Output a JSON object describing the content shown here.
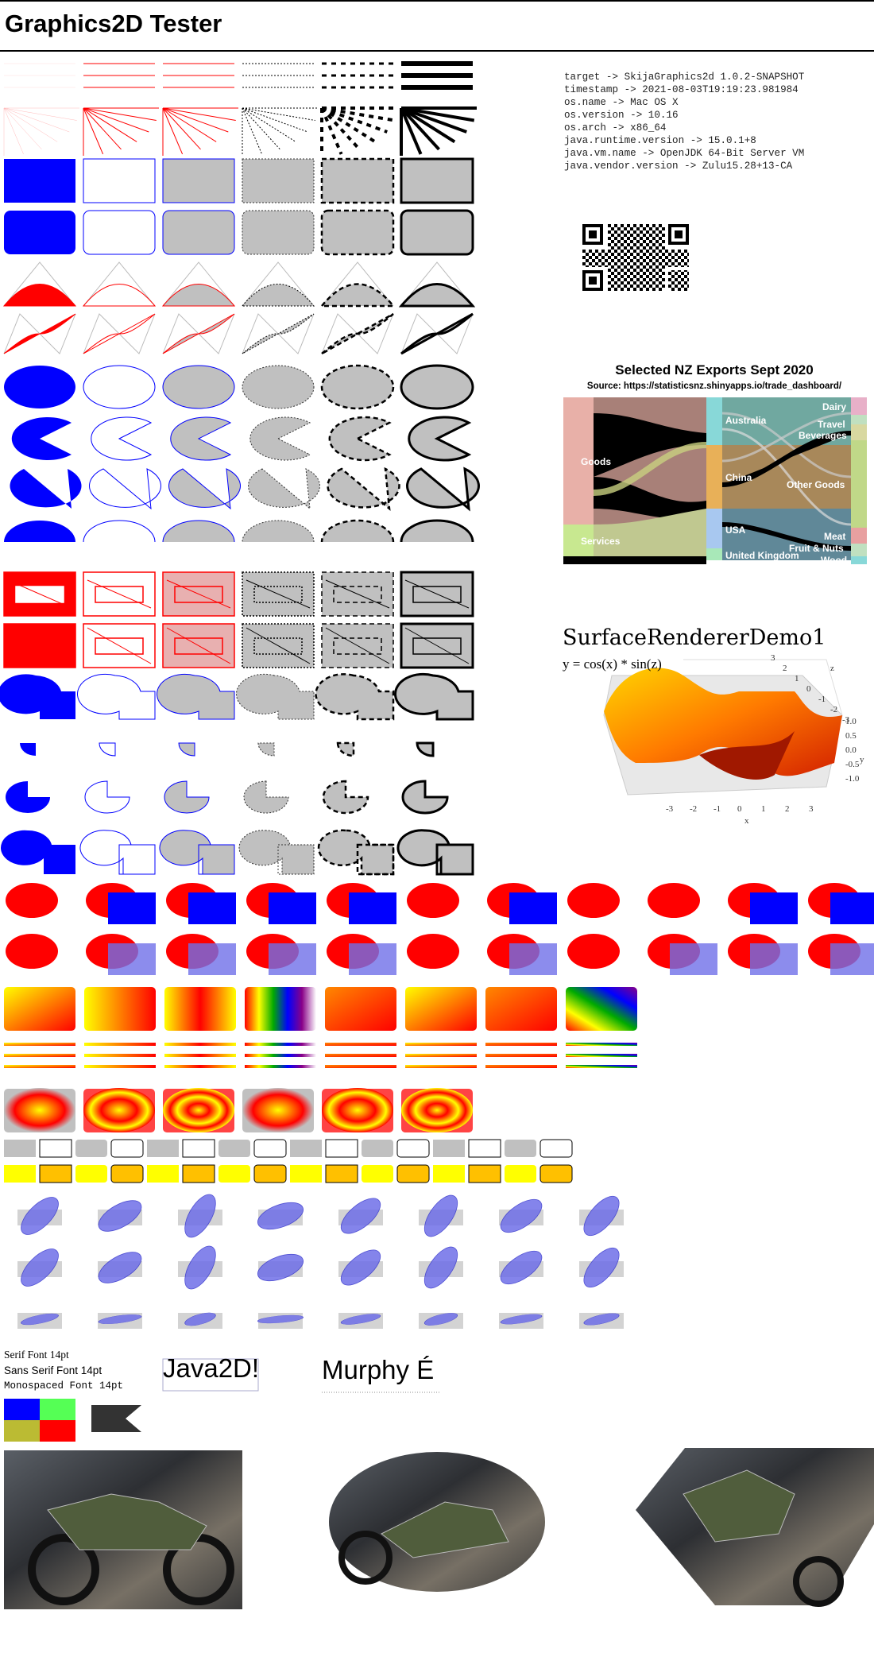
{
  "page": {
    "title": "Graphics2D Tester"
  },
  "system_info": [
    "target -> SkijaGraphics2d 1.0.2-SNAPSHOT",
    "timestamp -> 2021-08-03T19:19:23.981984",
    "os.name -> Mac OS X",
    "os.version -> 10.16",
    "os.arch -> x86_64",
    "java.runtime.version -> 15.0.1+8",
    "java.vm.name -> OpenJDK 64-Bit Server VM",
    "java.vendor.version -> Zulu15.28+13-CA"
  ],
  "sankey": {
    "title": "Selected NZ Exports Sept 2020",
    "source": "Source: https://statisticsnz.shinyapps.io/trade_dashboard/",
    "sources": [
      "Goods",
      "Services"
    ],
    "countries": [
      "Australia",
      "China",
      "USA",
      "United Kingdom"
    ],
    "products": [
      "Dairy",
      "Travel",
      "Beverages",
      "Other Goods",
      "Meat",
      "Fruit & Nuts",
      "Wood"
    ]
  },
  "surface": {
    "title": "SurfaceRendererDemo1",
    "formula": "y = cos(x) * sin(z)",
    "x_axis_label": "x",
    "y_axis_label": "y",
    "z_axis_label": "z",
    "x_ticks": [
      "-3",
      "-2",
      "-1",
      "0",
      "1",
      "2",
      "3"
    ],
    "y_ticks": [
      "1.0",
      "0.5",
      "0.0",
      "-0.5",
      "-1.0"
    ],
    "z_ticks": [
      "3",
      "2",
      "1",
      "0",
      "-1",
      "-2",
      "-3"
    ]
  },
  "fonts": {
    "serif": "Serif Font 14pt",
    "sans": "Sans Serif Font 14pt",
    "mono": "Monospaced Font 14pt",
    "sample1": "Java2D!",
    "sample2": "Murphy É"
  },
  "colors": {
    "blue": "#0000ff",
    "red": "#ff0000",
    "gray": "#c0c0c0",
    "yellow": "#ffff00",
    "orange": "#ffc000",
    "translucent_blue": "#6f6fe8"
  }
}
